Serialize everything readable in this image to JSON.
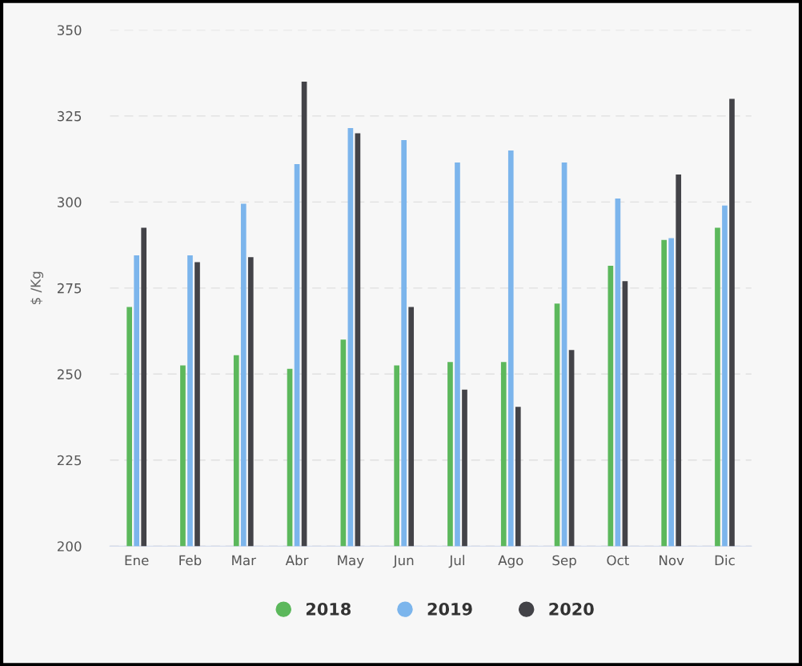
{
  "chart_data": {
    "type": "bar",
    "ylabel": "$ /Kg",
    "categories": [
      "Ene",
      "Feb",
      "Mar",
      "Abr",
      "May",
      "Jun",
      "Jul",
      "Ago",
      "Sep",
      "Oct",
      "Nov",
      "Dic"
    ],
    "series": [
      {
        "name": "2018",
        "color": "#5cb85c",
        "values": [
          269.5,
          252.5,
          255.5,
          251.5,
          260,
          252.5,
          253.5,
          253.5,
          270.5,
          281.5,
          289,
          292.5
        ]
      },
      {
        "name": "2019",
        "color": "#7cb5ec",
        "values": [
          284.5,
          284.5,
          299.5,
          311,
          321.5,
          318,
          311.5,
          315,
          311.5,
          301,
          289.5,
          299
        ]
      },
      {
        "name": "2020",
        "color": "#434348",
        "values": [
          292.5,
          282.5,
          284,
          335,
          320,
          269.5,
          245.5,
          240.5,
          257,
          277,
          308,
          330
        ]
      }
    ],
    "ylim": [
      200,
      350
    ],
    "yticks": [
      200,
      225,
      250,
      275,
      300,
      325,
      350
    ],
    "grid": "y",
    "legend": "bottom"
  }
}
